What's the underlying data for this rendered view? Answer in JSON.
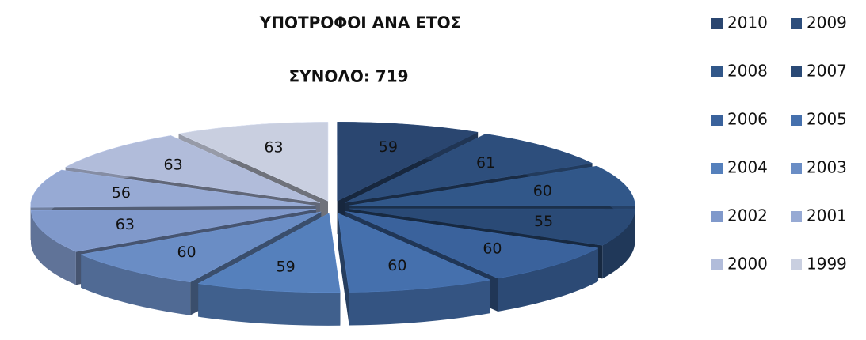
{
  "chart_data": {
    "type": "pie3d",
    "title": "ΥΠΟΤΡΟΦΟΙ ΑΝΑ ΕΤΟΣ",
    "subtitle": "ΣΥΝΟΛΟ: 719",
    "categories": [
      "2010",
      "2009",
      "2008",
      "2007",
      "2006",
      "2005",
      "2004",
      "2003",
      "2002",
      "2001",
      "2000",
      "1999"
    ],
    "values": [
      59,
      61,
      60,
      55,
      60,
      60,
      59,
      60,
      63,
      56,
      63,
      63
    ],
    "colors": [
      "#2a4670",
      "#2d4e7c",
      "#315789",
      "#2a4a76",
      "#3a629c",
      "#4570ad",
      "#5580bc",
      "#6a8dc5",
      "#8099cb",
      "#97aad4",
      "#b1bcda",
      "#c9cfe0"
    ],
    "legend": "right"
  }
}
